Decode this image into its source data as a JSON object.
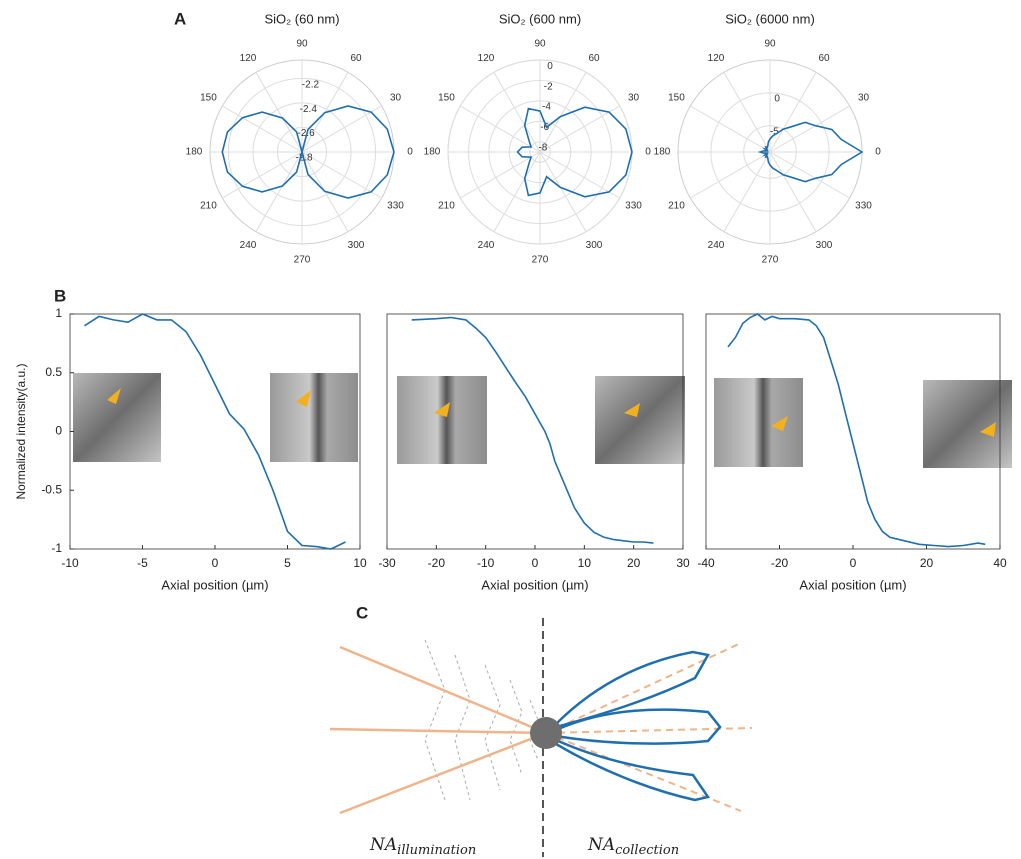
{
  "panel_labels": [
    "A",
    "B",
    "C"
  ],
  "chart_data": [
    {
      "type": "polar",
      "title": "SiO₂ (60 nm)",
      "color": "#1f6fb0",
      "theta": [
        0,
        15,
        30,
        45,
        60,
        75,
        90,
        105,
        120,
        135,
        150,
        165,
        180,
        195,
        210,
        225,
        240,
        255,
        270,
        285,
        300,
        315,
        330,
        345
      ],
      "values": [
        -2.05,
        -2.08,
        -2.15,
        -2.27,
        -2.43,
        -2.61,
        -2.8,
        -2.63,
        -2.48,
        -2.34,
        -2.24,
        -2.17,
        -2.15,
        -2.17,
        -2.24,
        -2.34,
        -2.48,
        -2.63,
        -2.8,
        -2.61,
        -2.43,
        -2.27,
        -2.15,
        -2.08
      ],
      "rlim": [
        -2.8,
        -2.05
      ],
      "rticks": [
        -2.8,
        -2.6,
        -2.4,
        -2.2
      ],
      "thetaticks": [
        0,
        30,
        60,
        90,
        120,
        150,
        180,
        210,
        240,
        270,
        300,
        330
      ]
    },
    {
      "type": "polar",
      "title": "SiO₂ (600 nm)",
      "color": "#1f6fb0",
      "theta": [
        0,
        15,
        30,
        45,
        60,
        75,
        90,
        105,
        120,
        135,
        150,
        165,
        180,
        195,
        210,
        225,
        240,
        255,
        270,
        285,
        300,
        315,
        330,
        345
      ],
      "values": [
        0,
        -0.3,
        -1.2,
        -2.8,
        -5,
        -6.5,
        -5,
        -4.6,
        -6,
        -7.5,
        -8,
        -7.2,
        -6.8,
        -7.2,
        -8,
        -7.5,
        -6,
        -4.6,
        -5,
        -6.5,
        -5,
        -2.8,
        -1.2,
        -0.3
      ],
      "rlim": [
        -9,
        0
      ],
      "rticks": [
        -8,
        -6,
        -4,
        -2,
        0
      ],
      "thetaticks": [
        0,
        30,
        60,
        90,
        120,
        150,
        180,
        210,
        240,
        270,
        300,
        330
      ]
    },
    {
      "type": "polar",
      "title": "SiO₂ (6000 nm)",
      "color": "#1f6fb0",
      "theta": [
        0,
        10,
        20,
        30,
        40,
        50,
        60,
        70,
        80,
        90,
        100,
        110,
        120,
        130,
        140,
        150,
        160,
        170,
        180,
        190,
        200,
        210,
        220,
        230,
        240,
        250,
        260,
        270,
        280,
        290,
        300,
        310,
        320,
        330,
        340,
        350
      ],
      "values": [
        5,
        2,
        1,
        -1,
        -2,
        -4,
        -5,
        -6,
        -6.5,
        -7,
        -7.5,
        -8,
        -8.2,
        -8,
        -8.4,
        -8.1,
        -8.5,
        -8,
        -7.5,
        -8,
        -8.5,
        -8.1,
        -8.4,
        -8,
        -8.2,
        -8,
        -7.5,
        -7,
        -6.5,
        -6,
        -5,
        -4,
        -2,
        -1,
        1,
        2
      ],
      "rlim": [
        -9,
        5
      ],
      "rticks": [
        -5,
        0
      ],
      "thetaticks": [
        0,
        30,
        60,
        90,
        120,
        150,
        180,
        210,
        240,
        270,
        300,
        330
      ]
    },
    {
      "type": "line",
      "color": "#1f6fb0",
      "ylabel": "Normalized intensity(a.u.)",
      "xlabel": "Axial position (µm)",
      "x": [
        -9,
        -8,
        -7,
        -6,
        -5,
        -4,
        -3,
        -2,
        -1,
        0,
        1,
        2,
        3,
        4,
        5,
        6,
        7,
        8,
        9
      ],
      "values": [
        0.9,
        0.98,
        0.95,
        0.93,
        1.0,
        0.95,
        0.95,
        0.85,
        0.65,
        0.4,
        0.15,
        0.02,
        -0.2,
        -0.5,
        -0.85,
        -0.97,
        -0.98,
        -1.0,
        -0.94
      ],
      "xlim": [
        -10,
        10
      ],
      "xticks": [
        -10,
        -5,
        0,
        5,
        10
      ],
      "ylim": [
        -1,
        1
      ],
      "yticks": [
        -1,
        -0.5,
        0,
        0.5,
        1
      ]
    },
    {
      "type": "line",
      "color": "#1f6fb0",
      "xlabel": "Axial position (µm)",
      "x": [
        -25,
        -20,
        -17,
        -14,
        -12,
        -10,
        -8,
        -6,
        -4,
        -2,
        0,
        2,
        3,
        4,
        6,
        8,
        10,
        12,
        14,
        16,
        18,
        20,
        22,
        24
      ],
      "values": [
        0.95,
        0.96,
        0.97,
        0.95,
        0.88,
        0.8,
        0.68,
        0.55,
        0.42,
        0.3,
        0.15,
        0.0,
        -0.1,
        -0.25,
        -0.45,
        -0.65,
        -0.78,
        -0.86,
        -0.9,
        -0.92,
        -0.93,
        -0.94,
        -0.94,
        -0.95
      ],
      "xlim": [
        -30,
        30
      ],
      "xticks": [
        -30,
        -20,
        -10,
        0,
        10,
        20,
        30
      ],
      "ylim": [
        -1,
        1
      ]
    },
    {
      "type": "line",
      "color": "#1f6fb0",
      "xlabel": "Axial position (µm)",
      "x": [
        -34,
        -32,
        -30,
        -28,
        -26,
        -24,
        -22,
        -20,
        -16,
        -12,
        -10,
        -8,
        -6,
        -4,
        -2,
        0,
        2,
        4,
        6,
        8,
        10,
        14,
        18,
        22,
        26,
        30,
        34,
        36
      ],
      "values": [
        0.72,
        0.8,
        0.92,
        0.97,
        1.0,
        0.95,
        0.98,
        0.96,
        0.96,
        0.95,
        0.9,
        0.8,
        0.6,
        0.4,
        0.15,
        -0.1,
        -0.35,
        -0.6,
        -0.75,
        -0.85,
        -0.9,
        -0.93,
        -0.96,
        -0.97,
        -0.98,
        -0.97,
        -0.95,
        -0.96
      ],
      "xlim": [
        -40,
        40
      ],
      "xticks": [
        -40,
        -20,
        0,
        20,
        40
      ],
      "ylim": [
        -1,
        1
      ]
    }
  ],
  "diagram": {
    "illumination_label": {
      "main": "NA",
      "sub": "illumination"
    },
    "collection_label": {
      "main": "NA",
      "sub": "collection"
    }
  }
}
